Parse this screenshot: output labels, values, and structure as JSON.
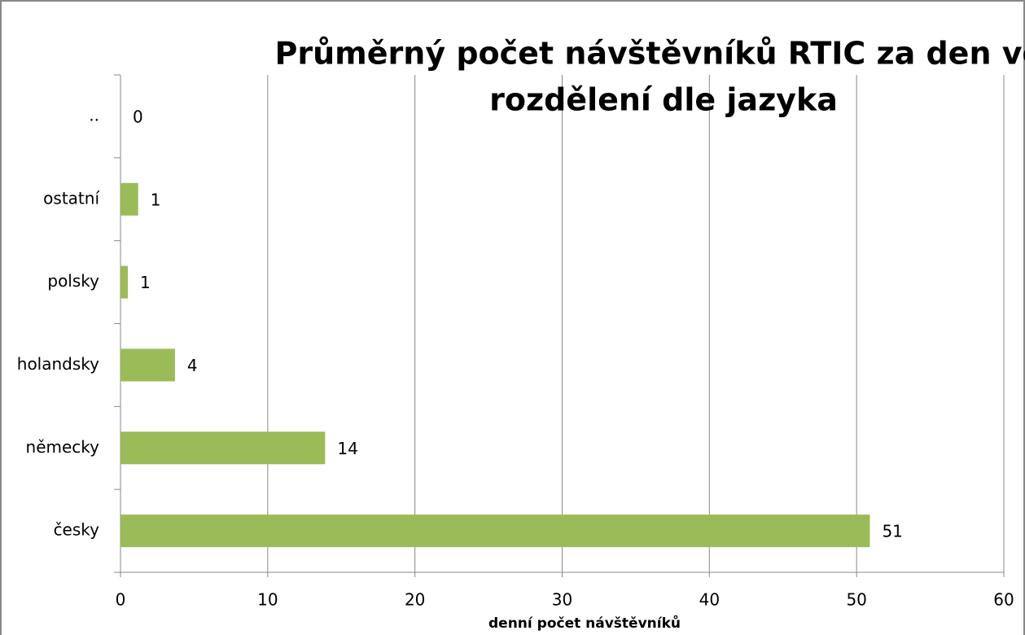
{
  "chart_data": {
    "type": "barh",
    "title": [
      "Průměrný počet návštěvníků RTIC za den vč.",
      "rozdělení dle jazyka"
    ],
    "xlabel": "denní počet návštěvníků",
    "categories": [
      "..",
      "ostatní",
      "polsky",
      "holandsky",
      "německy",
      "česky"
    ],
    "values": [
      0,
      1.2,
      0.5,
      3.7,
      13.9,
      50.9
    ],
    "value_labels": [
      "0",
      "1",
      "1",
      "4",
      "14",
      "51"
    ],
    "color": "#9bbb59",
    "xlim": [
      0,
      60
    ],
    "xticks": [
      0,
      10,
      20,
      30,
      40,
      50,
      60
    ],
    "grid": true
  }
}
